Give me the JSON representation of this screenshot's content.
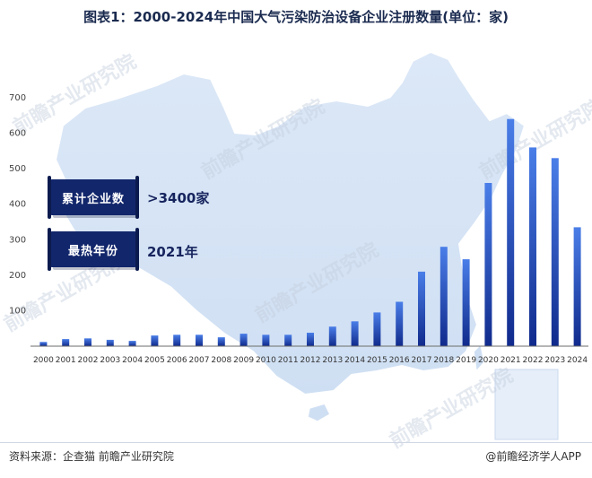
{
  "title": "图表1：2000-2024年中国大气污染防治设备企业注册数量(单位：家)",
  "stats": [
    {
      "label": "累计企业数",
      "value": ">3400家"
    },
    {
      "label": "最热年份",
      "value": "2021年"
    }
  ],
  "footer": {
    "source": "资料来源：企查猫 前瞻产业研究院",
    "brand": "@前瞻经济学人APP"
  },
  "watermark": "前瞻产业研究院",
  "colors": {
    "bar_top": "#4a7ee8",
    "bar_bottom": "#102a8c",
    "map_fill": "#d6e4f5",
    "box": "#12266b"
  },
  "chart_data": {
    "type": "bar",
    "title": "图表1：2000-2024年中国大气污染防治设备企业注册数量(单位：家)",
    "categories": [
      "2000",
      "2001",
      "2002",
      "2003",
      "2004",
      "2005",
      "2006",
      "2007",
      "2008",
      "2009",
      "2010",
      "2011",
      "2012",
      "2013",
      "2014",
      "2015",
      "2016",
      "2017",
      "2018",
      "2019",
      "2020",
      "2021",
      "2022",
      "2023",
      "2024"
    ],
    "series": [
      {
        "values": [
          12,
          20,
          22,
          18,
          15,
          30,
          32,
          32,
          25,
          35,
          32,
          32,
          38,
          55,
          70,
          95,
          125,
          210,
          280,
          245,
          460,
          640,
          560,
          530,
          335
        ]
      }
    ],
    "ylim": [
      0,
      700
    ],
    "yticks": [
      100,
      200,
      300,
      400,
      500,
      600,
      700
    ],
    "xlabel": "",
    "ylabel": "",
    "grid": false
  }
}
